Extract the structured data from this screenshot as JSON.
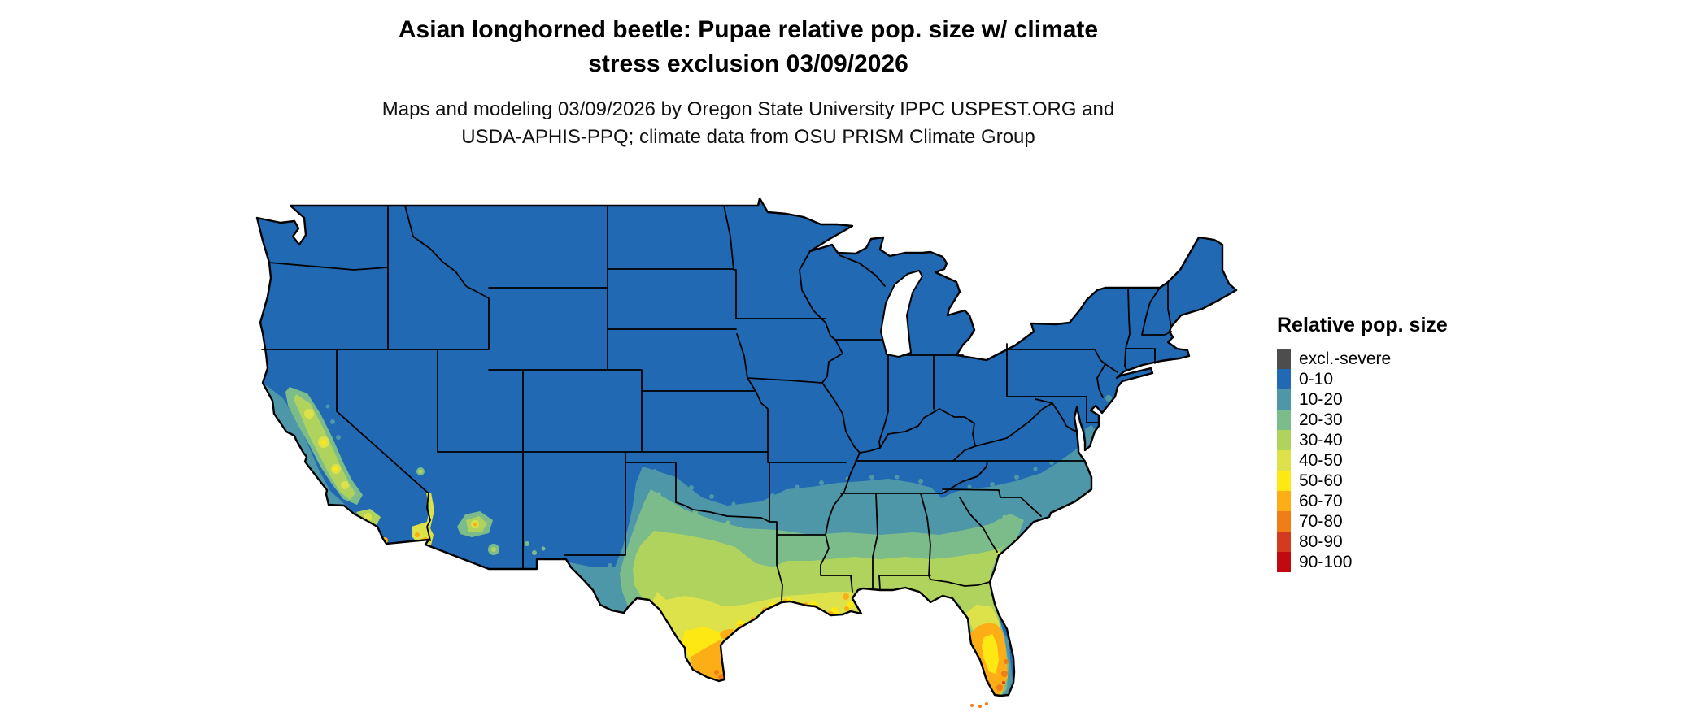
{
  "title": {
    "line1": "Asian longhorned beetle: Pupae relative pop. size w/ climate",
    "line2": "stress exclusion 03/09/2026"
  },
  "subtitle": {
    "line1": "Maps and modeling 03/09/2026 by Oregon State University IPPC USPEST.ORG and",
    "line2": "USDA-APHIS-PPQ; climate data from OSU PRISM Climate Group"
  },
  "legend": {
    "title": "Relative pop. size",
    "items": [
      {
        "key": "excl",
        "label": "excl.-severe",
        "color": "#4d4d4d"
      },
      {
        "key": "b0_10",
        "label": "0-10",
        "color": "#2269b3"
      },
      {
        "key": "t10_20",
        "label": "10-20",
        "color": "#4e97a8"
      },
      {
        "key": "g20_30",
        "label": "20-30",
        "color": "#7cbc8b"
      },
      {
        "key": "yg30_40",
        "label": "30-40",
        "color": "#b0d35e"
      },
      {
        "key": "y40_50",
        "label": "40-50",
        "color": "#dde24a"
      },
      {
        "key": "y50_60",
        "label": "50-60",
        "color": "#fee813"
      },
      {
        "key": "o60_70",
        "label": "60-70",
        "color": "#fdae17"
      },
      {
        "key": "o70_80",
        "label": "70-80",
        "color": "#f07d15"
      },
      {
        "key": "r80_90",
        "label": "80-90",
        "color": "#d43a20"
      },
      {
        "key": "r90_100",
        "label": "90-100",
        "color": "#c00a10"
      }
    ]
  }
}
